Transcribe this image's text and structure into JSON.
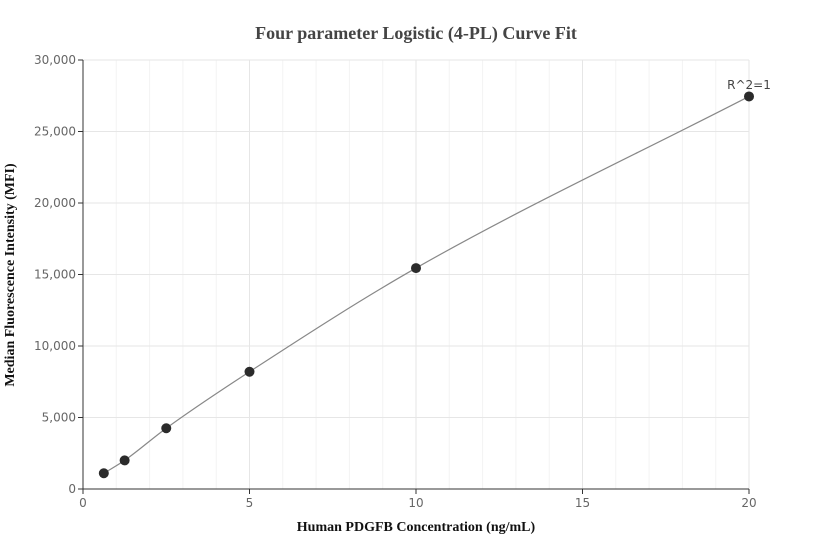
{
  "chart_data": {
    "type": "scatter",
    "title": "Four parameter Logistic (4-PL) Curve Fit",
    "xlabel": "Human PDGFB Concentration (ng/mL)",
    "ylabel": "Median Fluorescence Intensity (MFI)",
    "xlim": [
      0,
      20
    ],
    "ylim": [
      0,
      30000
    ],
    "x_ticks": [
      0,
      5,
      10,
      15,
      20
    ],
    "x_tick_labels": [
      "0",
      "5",
      "10",
      "15",
      "20"
    ],
    "y_ticks": [
      0,
      5000,
      10000,
      15000,
      20000,
      25000,
      30000
    ],
    "y_tick_labels": [
      "0",
      "5,000",
      "10,000",
      "15,000",
      "20,000",
      "25,000",
      "30,000"
    ],
    "grid": true,
    "series": [
      {
        "x": [
          0.625,
          1.25,
          2.5,
          5,
          10,
          20
        ],
        "y": [
          1100,
          2000,
          4250,
          8200,
          15450,
          27450
        ]
      }
    ],
    "annotation": "R^2=1",
    "colors": {
      "points": "#2b2b2b",
      "curve": "#888888"
    }
  }
}
